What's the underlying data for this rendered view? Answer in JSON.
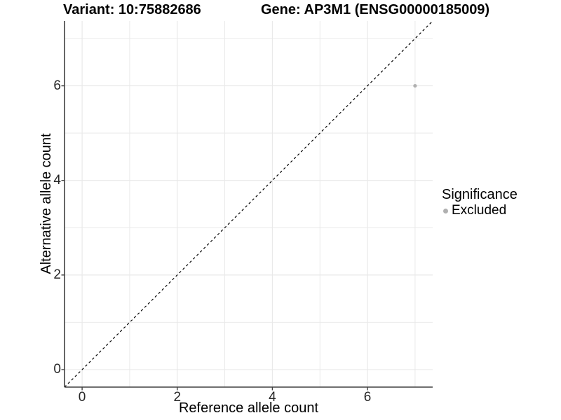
{
  "header": {
    "variant_title": "Variant: 10:75882686",
    "gene_title": "Gene: AP3M1 (ENSG00000185009)"
  },
  "axes": {
    "x_label": "Reference allele count",
    "y_label": "Alternative allele count"
  },
  "legend": {
    "title": "Significance",
    "item_excluded": "Excluded"
  },
  "chart_data": {
    "type": "scatter",
    "titles": [
      "Variant: 10:75882686",
      "Gene: AP3M1 (ENSG00000185009)"
    ],
    "xlabel": "Reference allele count",
    "ylabel": "Alternative allele count",
    "xlim": [
      -0.37,
      7.37
    ],
    "ylim": [
      -0.37,
      7.37
    ],
    "x_ticks": [
      0,
      2,
      4,
      6
    ],
    "y_ticks": [
      0,
      2,
      4,
      6
    ],
    "x_minor_ticks": [
      1,
      3,
      5,
      7
    ],
    "y_minor_ticks": [
      1,
      3,
      5,
      7
    ],
    "grid": "major+minor",
    "reference_line": {
      "type": "identity",
      "slope": 1,
      "intercept": 0,
      "style": "dashed",
      "color": "#000000"
    },
    "series": [
      {
        "name": "Excluded",
        "marker": "circle",
        "color": "#b0b0b0",
        "points": [
          {
            "x": 7,
            "y": 6
          }
        ]
      }
    ],
    "legend": {
      "title": "Significance",
      "position": "right",
      "items": [
        {
          "label": "Excluded",
          "color": "#b0b0b0"
        }
      ]
    },
    "style": {
      "background": "#ffffff",
      "grid_color": "#e9e9e9",
      "axis_color": "#404040",
      "tick_label_color": "#262626",
      "point_radius": 2.6,
      "legend_dot_color": "#b0b0b0"
    }
  }
}
